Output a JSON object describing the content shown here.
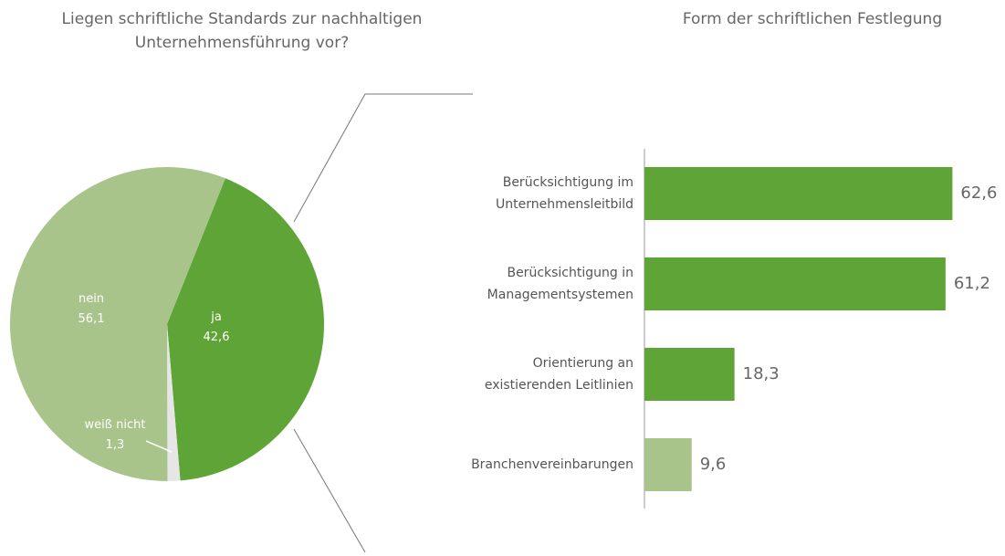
{
  "chart_data": [
    {
      "type": "pie",
      "title": "Liegen schriftliche Standards zur nachhaltigen\nUnternehmensführung vor?",
      "categories": [
        "ja",
        "weiß nicht",
        "nein"
      ],
      "values": [
        42.6,
        1.3,
        56.1
      ],
      "value_labels": [
        "42,6",
        "1,3",
        "56,1"
      ],
      "colors": [
        "#5fa437",
        "#e6e6e6",
        "#a8c48a"
      ]
    },
    {
      "type": "bar",
      "orientation": "horizontal",
      "title": "Form der schriftlichen Festlegung",
      "categories": [
        "Berücksichtigung im\nUnternehmensleitbild",
        "Berücksichtigung in\nManagementsystemen",
        "Orientierung an\nexistierenden Leitlinien",
        "Branchenvereinbarungen"
      ],
      "values": [
        62.6,
        61.2,
        18.3,
        9.6
      ],
      "value_labels": [
        "62,6",
        "61,2",
        "18,3",
        "9,6"
      ],
      "colors": [
        "#5fa437",
        "#5fa437",
        "#5fa437",
        "#a8c48a"
      ],
      "xlim": [
        0,
        100
      ]
    }
  ]
}
